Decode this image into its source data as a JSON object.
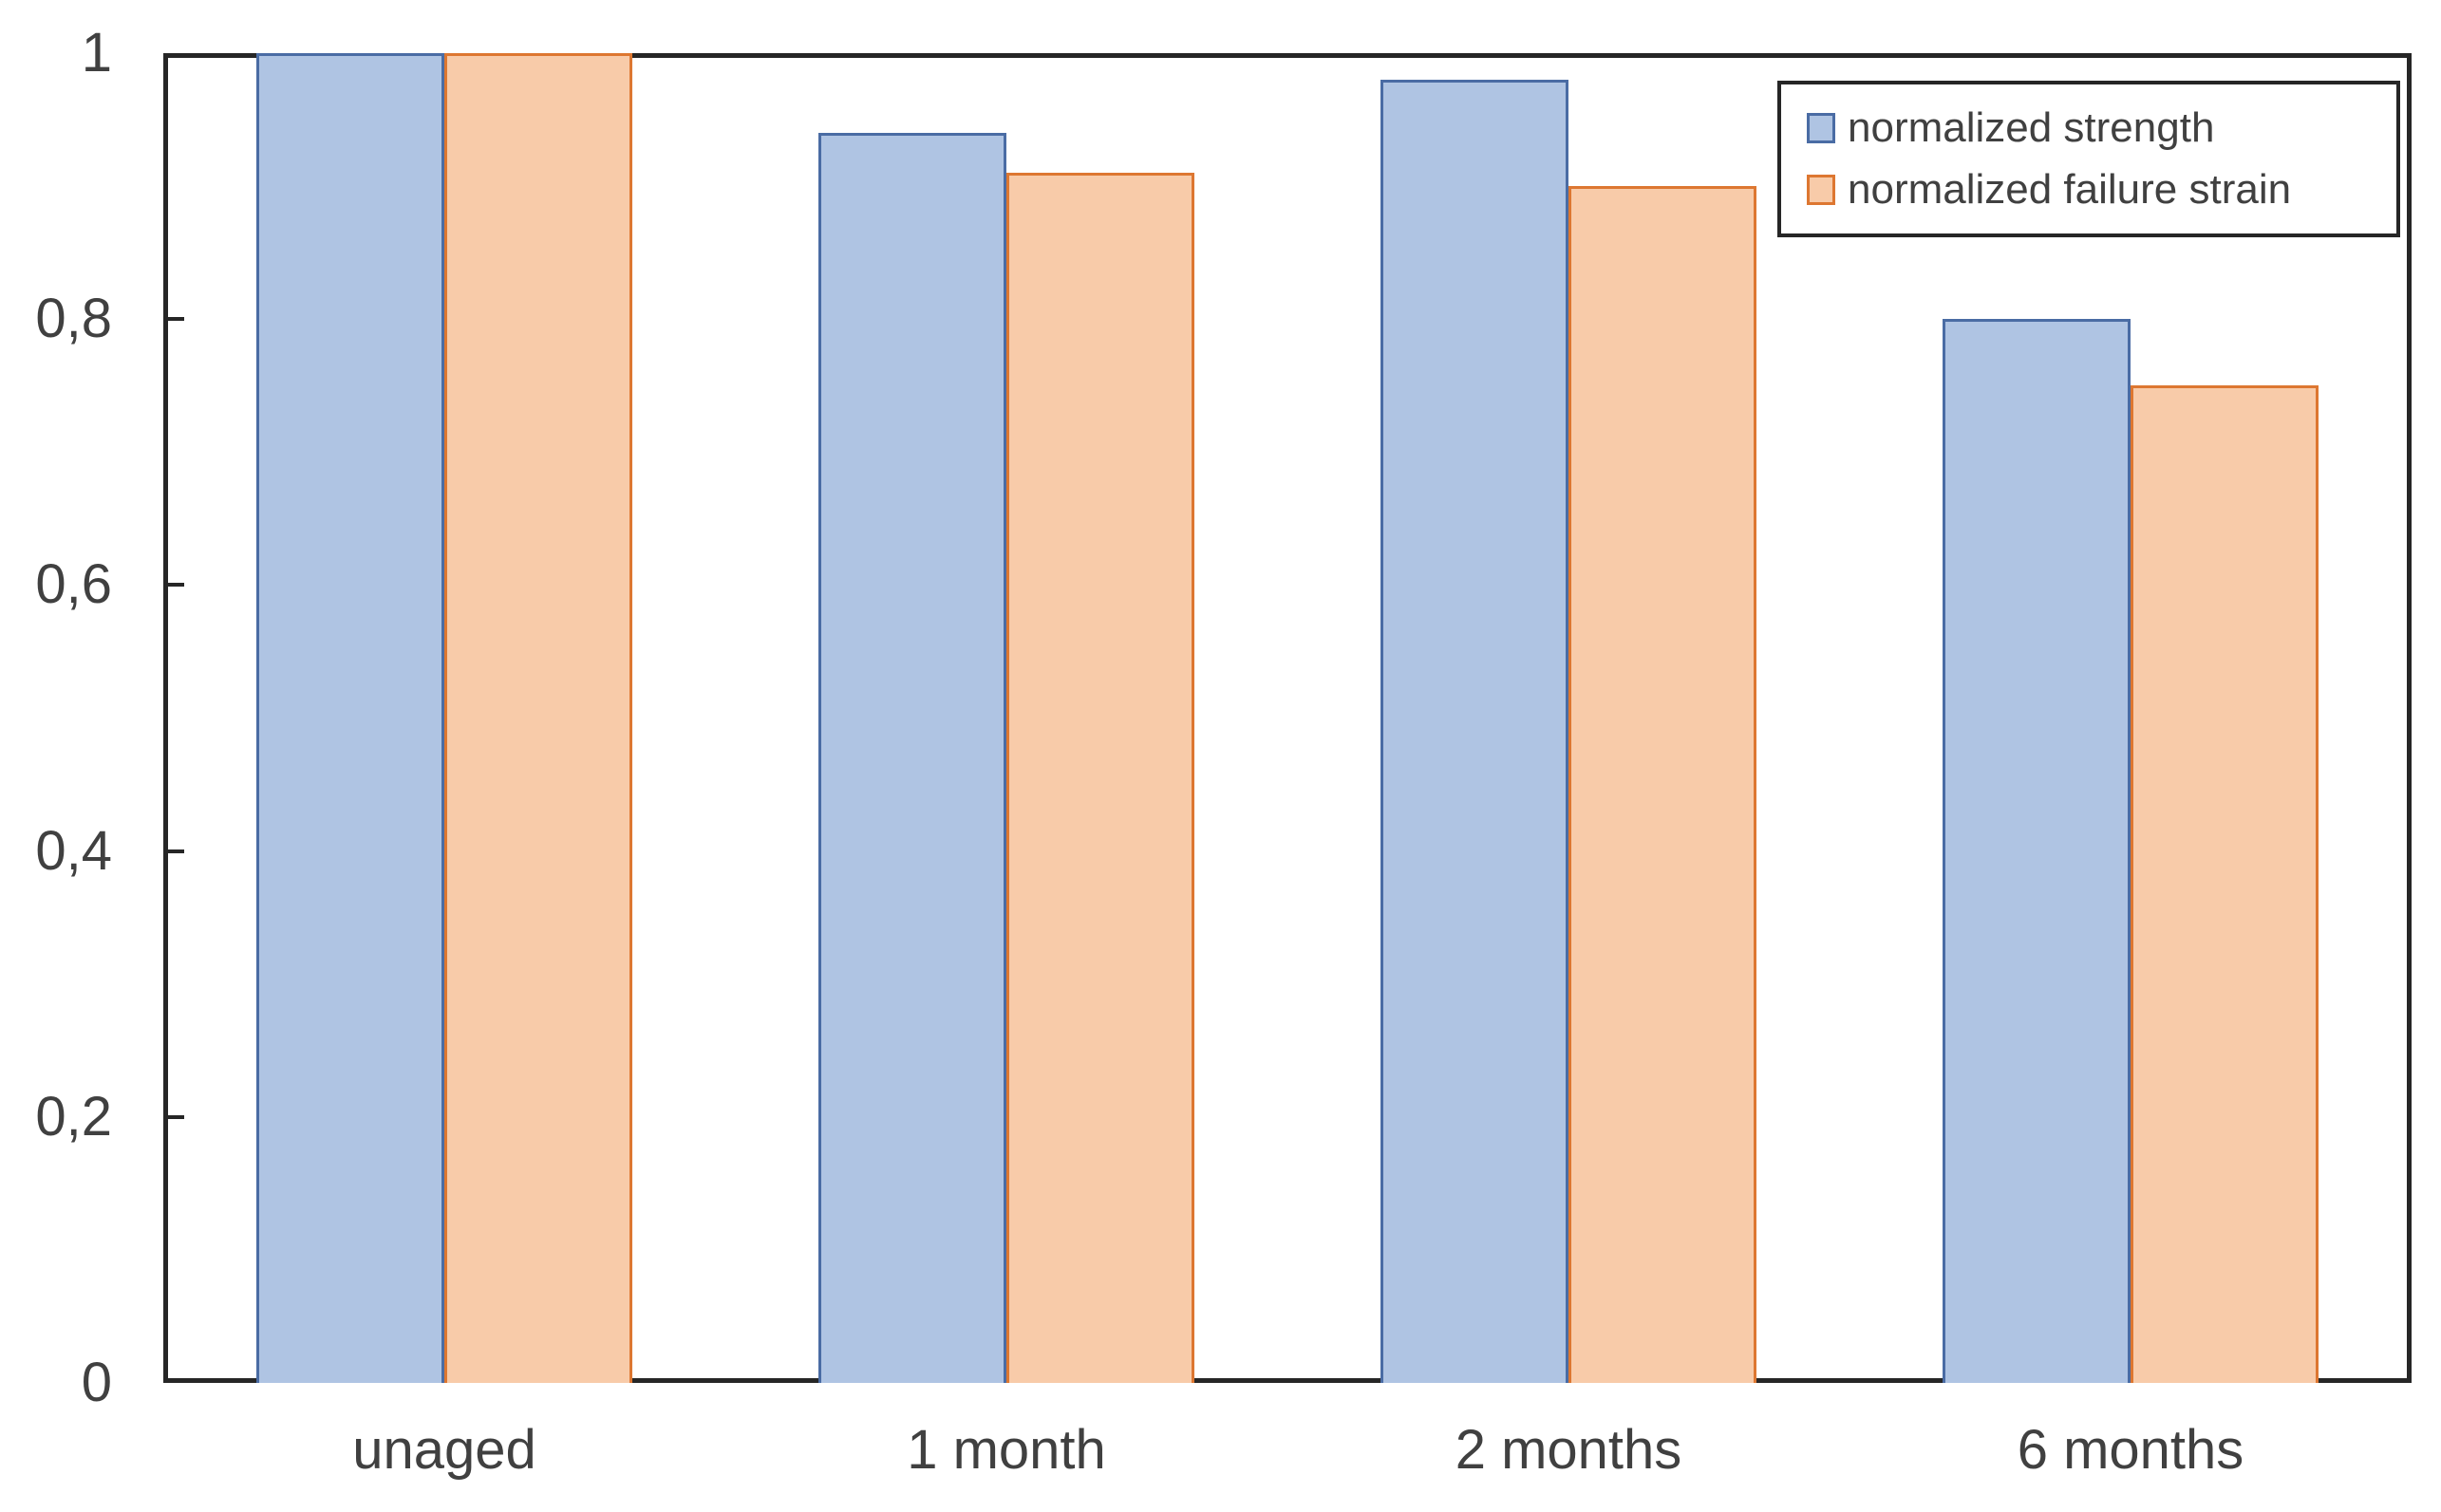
{
  "chart_data": {
    "type": "bar",
    "title": "",
    "xlabel": "",
    "ylabel": "",
    "categories": [
      "unaged",
      "1 month",
      "2 months",
      "6 months"
    ],
    "series": [
      {
        "name": "normalized strength",
        "fill": "#afc4e3",
        "border": "#4a6ca4",
        "values": [
          1,
          0.94,
          0.98,
          0.8
        ]
      },
      {
        "name": "normalized failure strain",
        "fill": "#f8cba9",
        "border": "#dd7731",
        "values": [
          1,
          0.91,
          0.9,
          0.75
        ]
      }
    ],
    "ylim": [
      0,
      1
    ],
    "yticks": [
      {
        "value": 0,
        "label": "0"
      },
      {
        "value": 0.2,
        "label": "0,2"
      },
      {
        "value": 0.4,
        "label": "0,4"
      },
      {
        "value": 0.6,
        "label": "0,6"
      },
      {
        "value": 0.8,
        "label": "0,8"
      },
      {
        "value": 1,
        "label": "1"
      }
    ],
    "grid": false,
    "legend_position": "top-right"
  },
  "colors": {
    "axis": "#262626",
    "tick_label": "#404040",
    "legend_text": "#404040",
    "legend_border": "#262626",
    "background": "#ffffff"
  }
}
